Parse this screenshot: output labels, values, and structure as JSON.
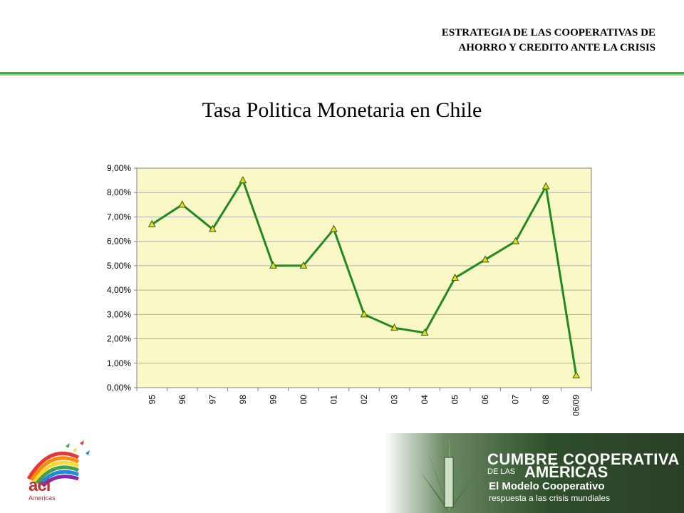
{
  "header": {
    "title_line1": "ESTRATEGIA DE LAS COOPERATIVAS DE",
    "title_line2": "AHORRO Y CREDITO ANTE LA CRISIS",
    "rule_color": "#3fae3b"
  },
  "slide": {
    "title": "Tasa Politica Monetaria en Chile"
  },
  "chart_data": {
    "type": "line",
    "title": "",
    "xlabel": "",
    "ylabel": "",
    "categories": [
      "95",
      "96",
      "97",
      "98",
      "99",
      "00",
      "01",
      "02",
      "03",
      "04",
      "05",
      "06",
      "07",
      "08",
      "06/09"
    ],
    "series": [
      {
        "values": [
          6.7,
          7.5,
          6.5,
          8.5,
          5.0,
          5.0,
          6.5,
          3.0,
          2.45,
          2.25,
          4.5,
          5.25,
          6.0,
          8.25,
          0.5
        ]
      }
    ],
    "ylim": [
      0,
      9
    ],
    "yticks": [
      0,
      1,
      2,
      3,
      4,
      5,
      6,
      7,
      8,
      9
    ],
    "ytick_labels": [
      "0,00%",
      "1,00%",
      "2,00%",
      "3,00%",
      "4,00%",
      "5,00%",
      "6,00%",
      "7,00%",
      "8,00%",
      "9,00%"
    ],
    "grid": true,
    "legend": "none",
    "colors": {
      "line": "#1f8a1f",
      "marker": "#dede1a",
      "plot_bg": "#fbf8c8"
    }
  },
  "footer": {
    "logo_text": "aci",
    "logo_sub": "Americas",
    "cumbre_line1": "CUMBRE COOPERATIVA",
    "cumbre_delas": "DE LAS",
    "cumbre_line2": "AMÉRICAS",
    "modelo": "El Modelo Cooperativo",
    "respuesta": "respuesta a las crisis mundiales"
  }
}
